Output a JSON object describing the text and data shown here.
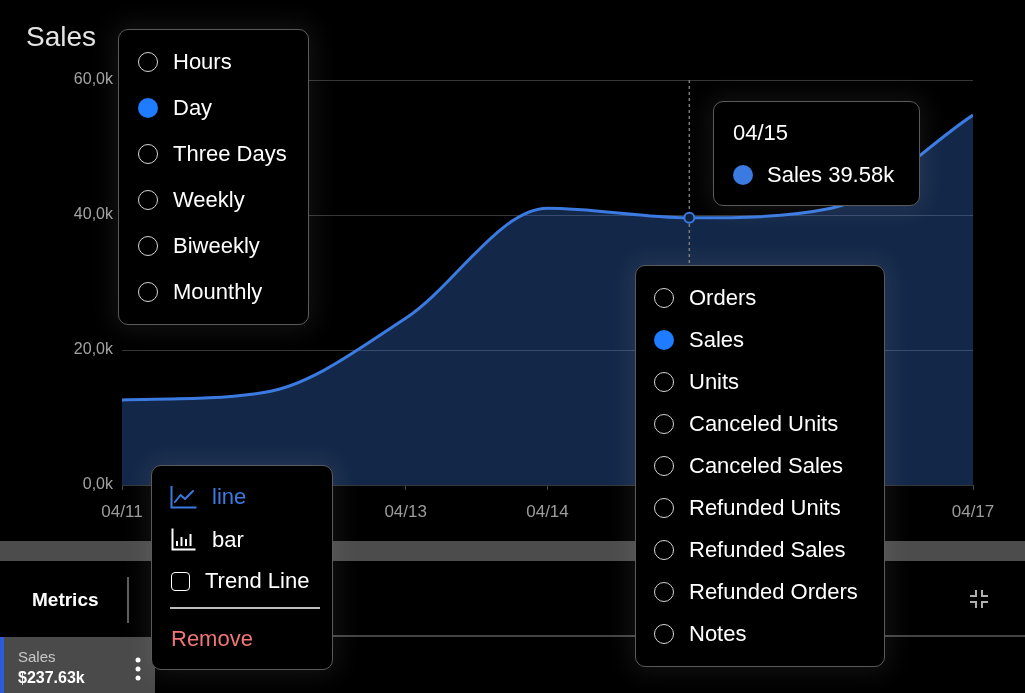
{
  "chart_data": {
    "type": "area",
    "title": "Sales",
    "x": [
      "--04-11",
      "--04-12",
      "--04-13",
      "--04-14",
      "--04-15",
      "--04-16",
      "--04-17"
    ],
    "values": [
      12600,
      13700,
      24700,
      41000,
      39580,
      41000,
      54800
    ],
    "color": "#3b7ae0",
    "xlim": [
      "--04-11",
      "--04-17"
    ],
    "xticks": [
      {
        "value": "--04-11",
        "label": "04/11"
      },
      {
        "value": "--04-13",
        "label": "04/13"
      },
      {
        "value": "--04-14",
        "label": "04/14"
      },
      {
        "value": "--04-17",
        "label": "04/17"
      }
    ],
    "ylim": [
      0,
      60000
    ],
    "yticks": [
      {
        "value": 0,
        "label": "0,0k"
      },
      {
        "value": 20000,
        "label": "20,0k"
      },
      {
        "value": 40000,
        "label": "40,0k"
      },
      {
        "value": 60000,
        "label": "60,0k"
      }
    ],
    "grid": "y",
    "ref_lines": [
      {
        "axis": "x",
        "value": "--04-15",
        "color": "#7a7a7a",
        "line_style": "dashed"
      }
    ],
    "annotations": [
      "Hours",
      "Day",
      "Three Days",
      "Weekly",
      "Biweekly",
      "Mounthly",
      "04/15",
      "Sales 39.58k",
      "Orders",
      "Sales",
      "Units",
      "Canceled Units",
      "Canceled Sales",
      "Refunded Units",
      "Refunded Sales",
      "Refunded Orders",
      "Notes",
      "line",
      "bar",
      "Trend Line",
      "Remove",
      "Metrics",
      "Sales",
      "$237.63k"
    ]
  }
}
